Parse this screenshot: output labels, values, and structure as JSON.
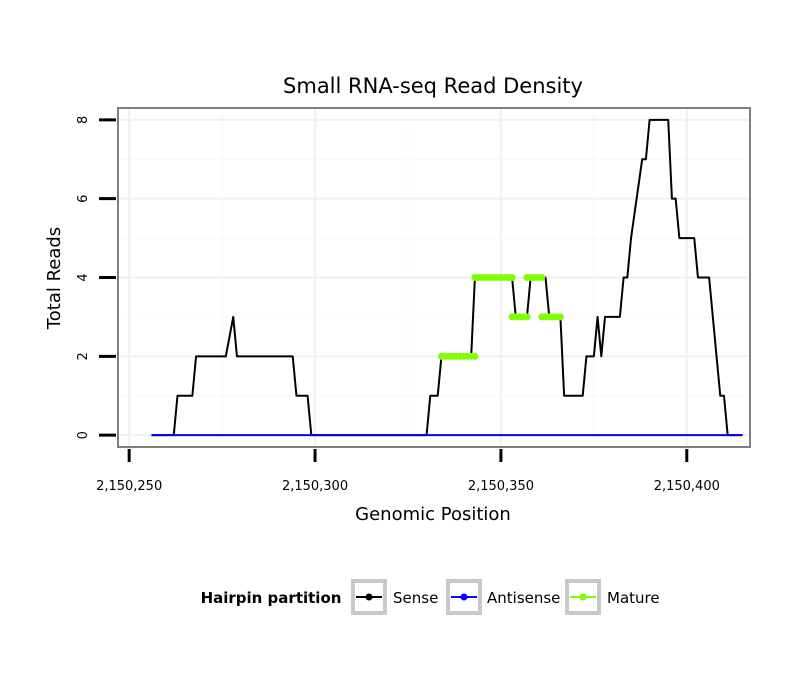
{
  "chart_data": {
    "type": "line",
    "title": "Small RNA-seq Read Density",
    "xlabel": "Genomic Position",
    "ylabel": "Total Reads",
    "xlim": [
      2150247,
      2150417
    ],
    "ylim": [
      -0.3,
      8.3
    ],
    "x_ticks": [
      2150250,
      2150300,
      2150350,
      2150400
    ],
    "x_tick_labels": [
      "2,150,250",
      "2,150,300",
      "2,150,350",
      "2,150,400"
    ],
    "y_ticks": [
      0,
      2,
      4,
      6,
      8
    ],
    "y_tick_labels": [
      "0",
      "2",
      "4",
      "6",
      "8"
    ],
    "grid": true,
    "legend": {
      "title": "Hairpin partition",
      "position": "bottom",
      "entries": [
        "Sense",
        "Antisense",
        "Mature"
      ]
    },
    "series": [
      {
        "name": "Sense",
        "color": "#000000",
        "x": [
          2150256,
          2150262,
          2150263,
          2150267,
          2150268,
          2150269,
          2150276,
          2150277,
          2150278,
          2150279,
          2150294,
          2150295,
          2150298,
          2150299,
          2150330,
          2150331,
          2150333,
          2150334,
          2150335,
          2150342,
          2150343,
          2150353,
          2150354,
          2150357,
          2150358,
          2150362,
          2150363,
          2150366,
          2150367,
          2150372,
          2150373,
          2150375,
          2150376,
          2150377,
          2150378,
          2150382,
          2150383,
          2150384,
          2150385,
          2150388,
          2150389,
          2150390,
          2150395,
          2150396,
          2150397,
          2150398,
          2150402,
          2150403,
          2150406,
          2150407,
          2150408,
          2150409,
          2150410,
          2150411,
          2150415
        ],
        "y": [
          0,
          0,
          1,
          1,
          2,
          2,
          2,
          2.5,
          3,
          2,
          2,
          1,
          1,
          0,
          0,
          1,
          1,
          2,
          2,
          2,
          4,
          4,
          3,
          3,
          4,
          4,
          3,
          3,
          1,
          1,
          2,
          2,
          3,
          2,
          3,
          3,
          4,
          4,
          5,
          7,
          7,
          8,
          8,
          6,
          6,
          5,
          5,
          4,
          4,
          3,
          2,
          1,
          1,
          0,
          0
        ]
      },
      {
        "name": "Antisense",
        "color": "#0000ff",
        "x": [
          2150256,
          2150415
        ],
        "y": [
          0,
          0
        ]
      },
      {
        "name": "Mature",
        "color": "#7fff00",
        "segments": [
          {
            "x_start": 2150334,
            "x_end": 2150343,
            "y": 2
          },
          {
            "x_start": 2150343,
            "x_end": 2150353,
            "y": 4
          },
          {
            "x_start": 2150353,
            "x_end": 2150357,
            "y": 3
          },
          {
            "x_start": 2150357,
            "x_end": 2150361,
            "y": 4
          },
          {
            "x_start": 2150361,
            "x_end": 2150366,
            "y": 3
          }
        ]
      }
    ]
  }
}
